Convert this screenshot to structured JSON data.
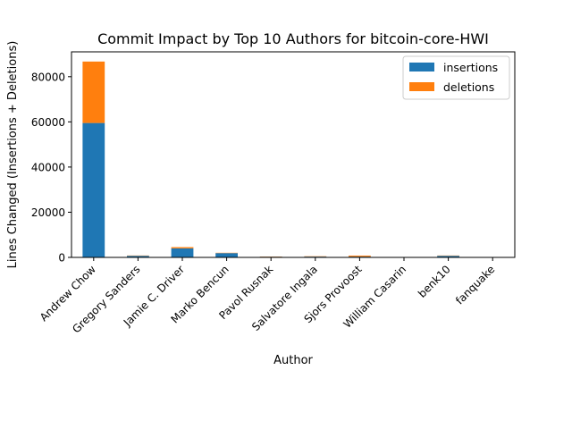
{
  "chart_data": {
    "type": "bar",
    "stacked": true,
    "title": "Commit Impact by Top 10 Authors for bitcoin-core-HWI",
    "xlabel": "Author",
    "ylabel": "Lines Changed (Insertions + Deletions)",
    "categories": [
      "Andrew Chow",
      "Gregory Sanders",
      "Jamie C. Driver",
      "Marko Bencun",
      "Pavol Rusnak",
      "Salvatore Ingala",
      "Sjors Provoost",
      "William Casarin",
      "benk10",
      "fanquake"
    ],
    "series": [
      {
        "name": "insertions",
        "color": "#1f77b4",
        "values": [
          59500,
          700,
          4000,
          1900,
          300,
          350,
          350,
          60,
          700,
          30
        ]
      },
      {
        "name": "deletions",
        "color": "#ff7f0e",
        "values": [
          27200,
          150,
          550,
          150,
          100,
          150,
          450,
          20,
          150,
          10
        ]
      }
    ],
    "ylim": [
      0,
      91000
    ],
    "yticks": [
      0,
      20000,
      40000,
      60000,
      80000
    ],
    "ytick_labels": [
      "0",
      "20000",
      "40000",
      "60000",
      "80000"
    ],
    "grid": false,
    "legend_position": "upper right"
  }
}
